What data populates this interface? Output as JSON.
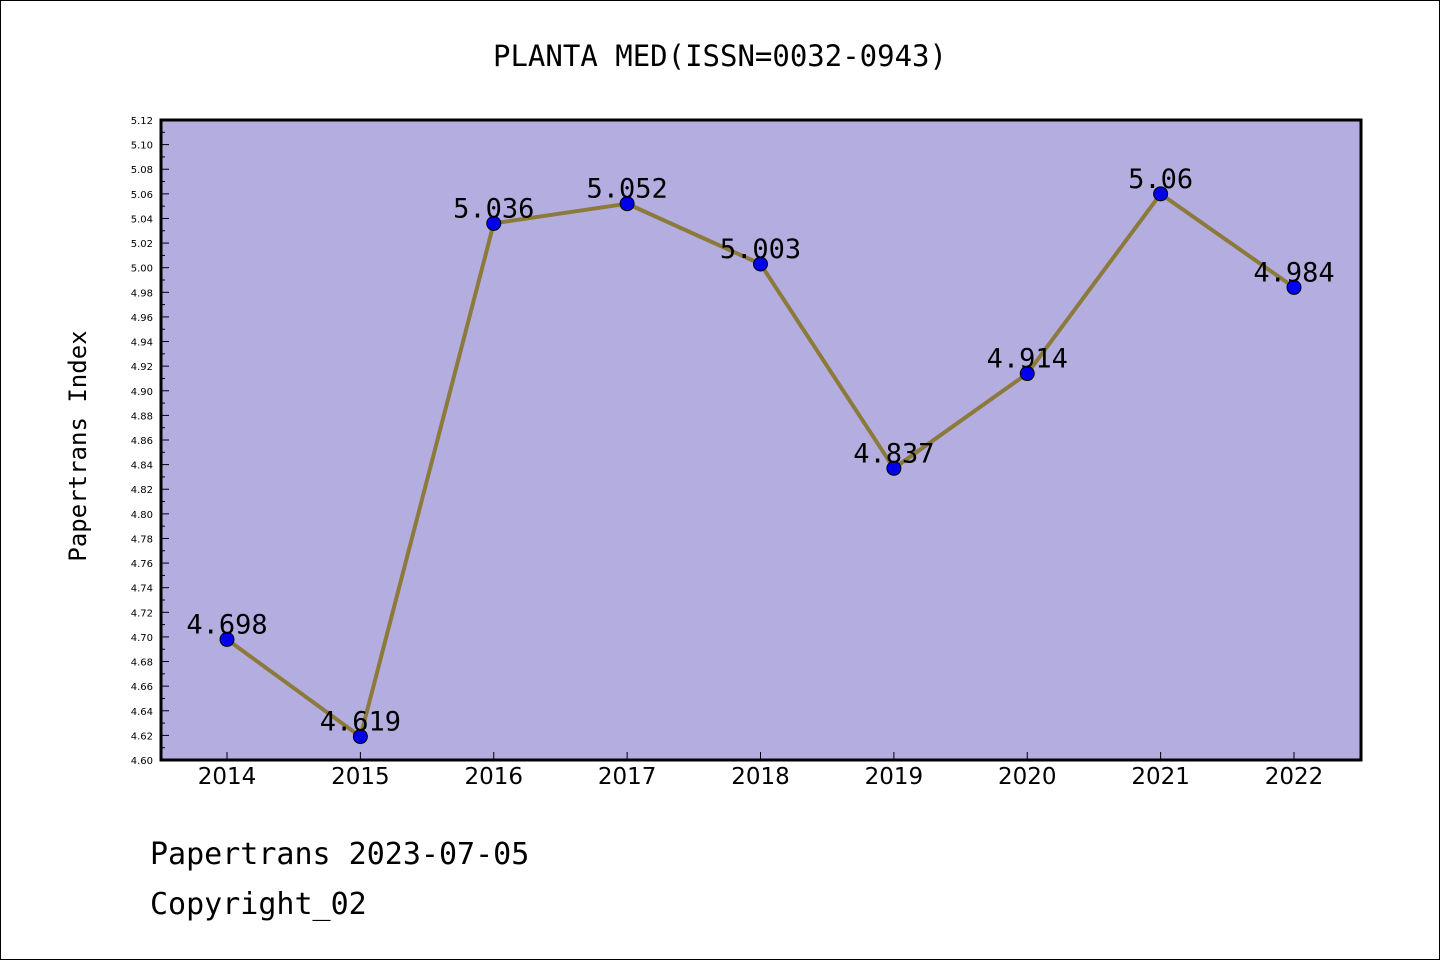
{
  "chart_data": {
    "type": "line",
    "title": "PLANTA MED(ISSN=0032-0943)",
    "xlabel": "",
    "ylabel": "Papertrans Index",
    "categories": [
      "2014",
      "2015",
      "2016",
      "2017",
      "2018",
      "2019",
      "2020",
      "2021",
      "2022"
    ],
    "series": [
      {
        "values": [
          4.698,
          4.619,
          5.036,
          5.052,
          5.003,
          4.837,
          4.914,
          5.06,
          4.984
        ],
        "labels": [
          "4.698",
          "4.619",
          "5.036",
          "5.052",
          "5.003",
          "4.837",
          "4.914",
          "5.06",
          "4.984"
        ],
        "line_color": "#8b7a3a",
        "marker_color": "#0000ee"
      }
    ],
    "ylim": [
      4.6,
      5.12
    ],
    "ytick_step": 0.02,
    "plot_background": "#b4aee0",
    "grid": false,
    "legend": "none"
  },
  "footer": {
    "line1": "Papertrans 2023-07-05",
    "line2": "Copyright_02"
  }
}
